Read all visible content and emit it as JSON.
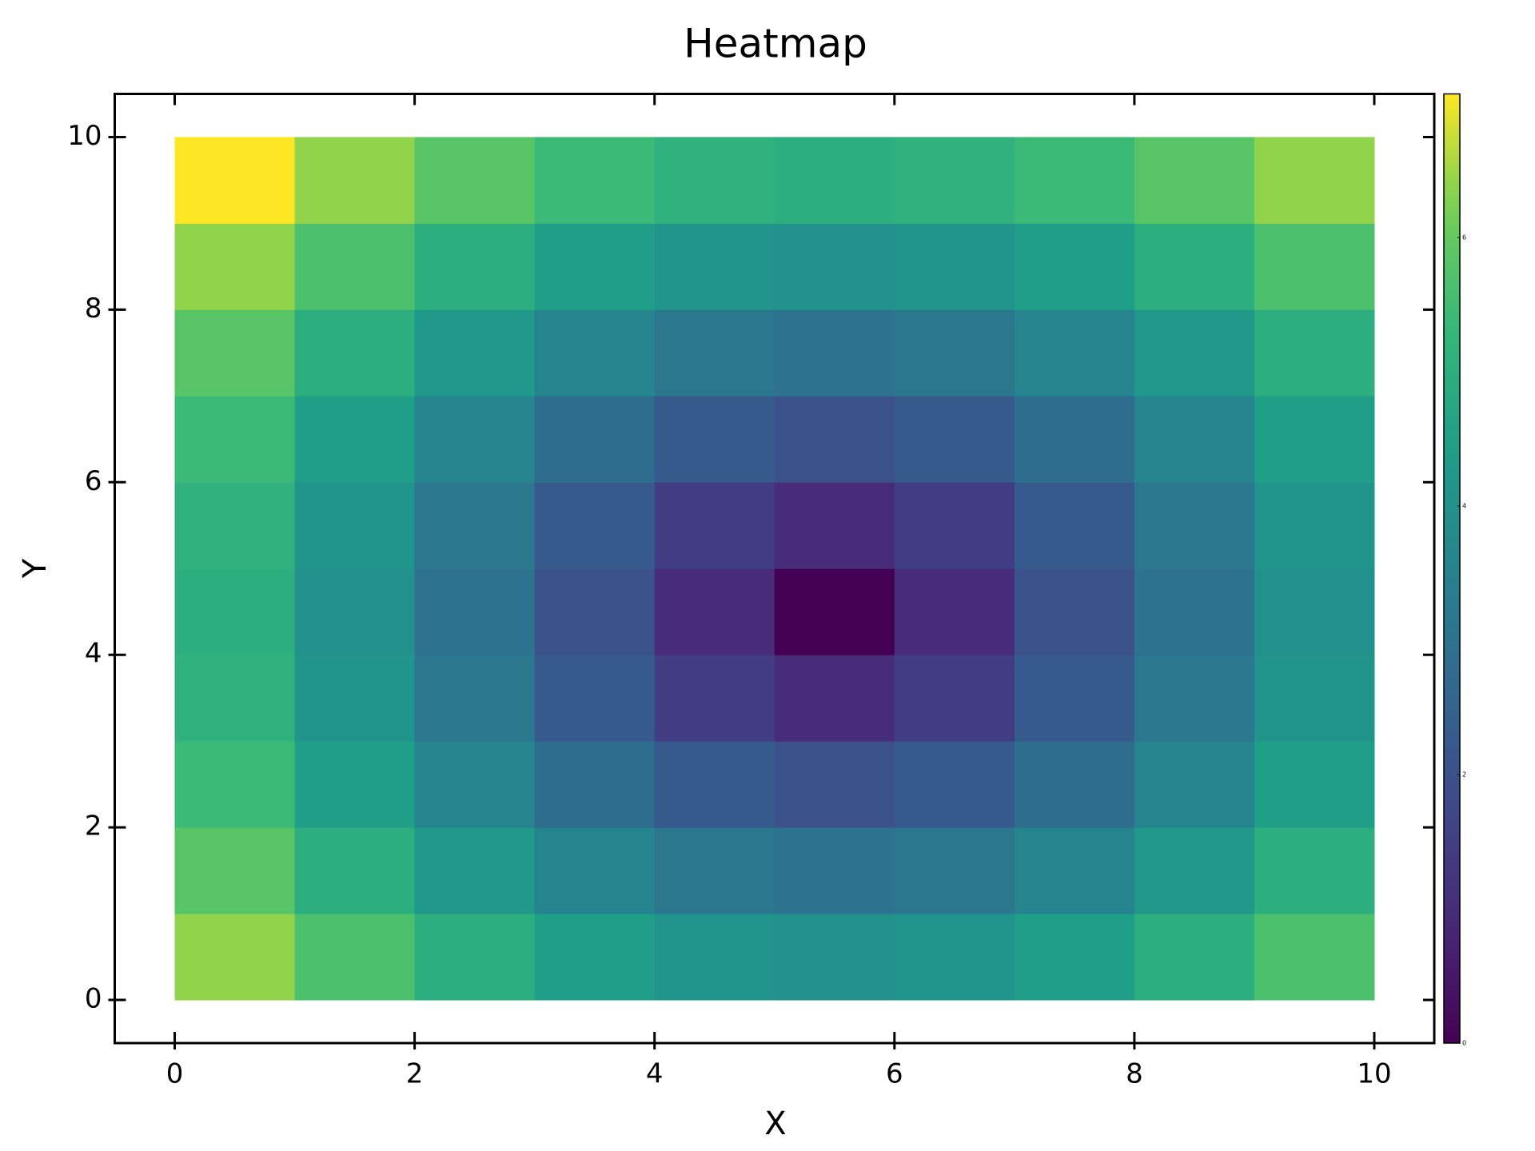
{
  "chart_data": {
    "type": "heatmap",
    "title": "Heatmap",
    "x_label": "X",
    "y_label": "Y",
    "x_edges": [
      0,
      1,
      2,
      3,
      4,
      5,
      6,
      7,
      8,
      9,
      10
    ],
    "y_edges": [
      0,
      1,
      2,
      3,
      4,
      5,
      6,
      7,
      8,
      9,
      10
    ],
    "z": [
      [
        6.4,
        5.66,
        5.0,
        4.47,
        4.12,
        4.0,
        4.12,
        4.47,
        5.0,
        5.66
      ],
      [
        5.83,
        5.0,
        4.24,
        3.61,
        3.16,
        3.0,
        3.16,
        3.61,
        4.24,
        5.0
      ],
      [
        5.39,
        4.47,
        3.61,
        2.83,
        2.24,
        2.0,
        2.24,
        2.83,
        3.61,
        4.47
      ],
      [
        5.1,
        4.12,
        3.16,
        2.24,
        1.41,
        1.0,
        1.41,
        2.24,
        3.16,
        4.12
      ],
      [
        5.0,
        4.0,
        3.0,
        2.0,
        1.0,
        0.0,
        1.0,
        2.0,
        3.0,
        4.0
      ],
      [
        5.1,
        4.12,
        3.16,
        2.24,
        1.41,
        1.0,
        1.41,
        2.24,
        3.16,
        4.12
      ],
      [
        5.39,
        4.47,
        3.61,
        2.83,
        2.24,
        2.0,
        2.24,
        2.83,
        3.61,
        4.47
      ],
      [
        5.83,
        5.0,
        4.24,
        3.61,
        3.16,
        3.0,
        3.16,
        3.61,
        4.24,
        5.0
      ],
      [
        6.4,
        5.66,
        5.0,
        4.47,
        4.12,
        4.0,
        4.12,
        4.47,
        5.0,
        5.66
      ],
      [
        7.07,
        6.4,
        5.83,
        5.39,
        5.1,
        5.0,
        5.1,
        5.39,
        5.83,
        6.4
      ]
    ],
    "colormap": "viridis",
    "clim": [
      0,
      7.07
    ],
    "colorbar_ticks": [
      0,
      2,
      4,
      6
    ],
    "xlim": [
      -0.5,
      10.5
    ],
    "ylim": [
      -0.5,
      10.5
    ],
    "xticks": [
      0,
      2,
      4,
      6,
      8,
      10
    ],
    "yticks": [
      0,
      2,
      4,
      6,
      8,
      10
    ],
    "grid": false
  }
}
